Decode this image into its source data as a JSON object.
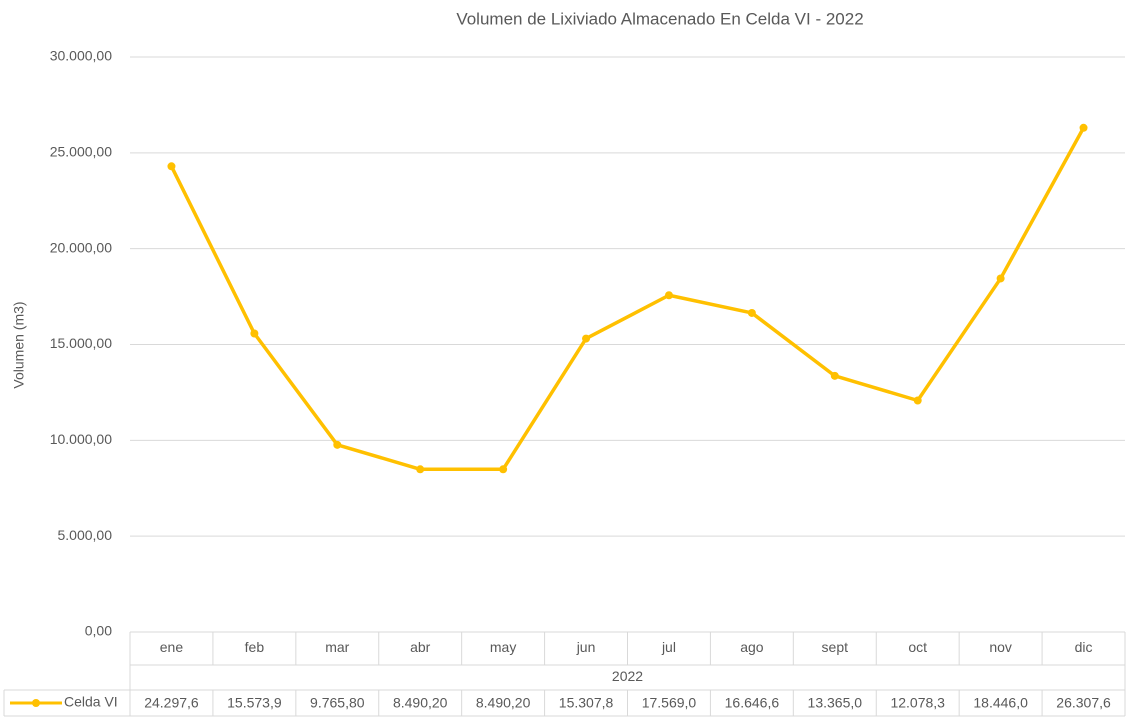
{
  "chart_data": {
    "type": "line",
    "title": "Volumen de Lixiviado Almacenado En Celda VI -  2022",
    "y_label": "Volumen (m3)",
    "category_group": "2022",
    "categories": [
      "ene",
      "feb",
      "mar",
      "abr",
      "may",
      "jun",
      "jul",
      "ago",
      "sept",
      "oct",
      "nov",
      "dic"
    ],
    "series": [
      {
        "name": "Celda VI",
        "color": "#ffc000",
        "values": [
          24297.6,
          15573.9,
          9765.8,
          8490.2,
          8490.2,
          15307.8,
          17569.0,
          16646.6,
          13365.0,
          12078.3,
          18446.0,
          26307.6
        ],
        "value_labels": [
          "24.297,6",
          "15.573,9",
          "9.765,80",
          "8.490,20",
          "8.490,20",
          "15.307,8",
          "17.569,0",
          "16.646,6",
          "13.365,0",
          "12.078,3",
          "18.446,0",
          "26.307,6"
        ]
      }
    ],
    "ylim": [
      0,
      30000
    ],
    "yticks": [
      {
        "value": 0,
        "label": "0,00"
      },
      {
        "value": 5000,
        "label": "5.000,00"
      },
      {
        "value": 10000,
        "label": "10.000,00"
      },
      {
        "value": 15000,
        "label": "15.000,00"
      },
      {
        "value": 20000,
        "label": "20.000,00"
      },
      {
        "value": 25000,
        "label": "25.000,00"
      },
      {
        "value": 30000,
        "label": "30.000,00"
      }
    ],
    "grid": true
  }
}
